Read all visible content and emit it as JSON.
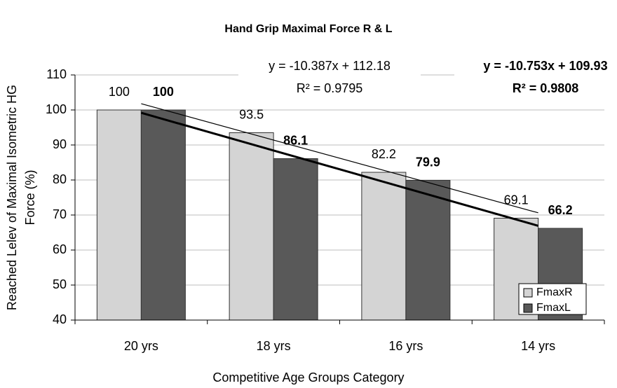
{
  "chart_data": {
    "type": "bar",
    "title": "Hand Grip Maximal Force R & L",
    "ylabel": [
      "Reached Lelev of Maximal Isometric HG",
      "Force (%)"
    ],
    "xlabel": "Competitive Age Groups Category",
    "categories": [
      "20 yrs",
      "18 yrs",
      "16 yrs",
      "14 yrs"
    ],
    "series": [
      {
        "name": "FmaxR",
        "color": "#d4d4d4",
        "values": [
          100,
          93.5,
          82.2,
          69.1
        ],
        "trendline": {
          "slope": -10.387,
          "intercept": 112.18,
          "equation": "y = -10.387x + 112.18",
          "r2": "R² = 0.9795"
        }
      },
      {
        "name": "FmaxL",
        "color": "#595959",
        "values": [
          100,
          86.1,
          79.9,
          66.2
        ],
        "trendline": {
          "slope": -10.753,
          "intercept": 109.93,
          "equation": "y = -10.753x + 109.93",
          "r2": "R² = 0.9808"
        }
      }
    ],
    "ylim": [
      40,
      110
    ],
    "yticks": [
      40,
      50,
      60,
      70,
      80,
      90,
      100,
      110
    ],
    "grid": true,
    "legend": "lower right"
  }
}
